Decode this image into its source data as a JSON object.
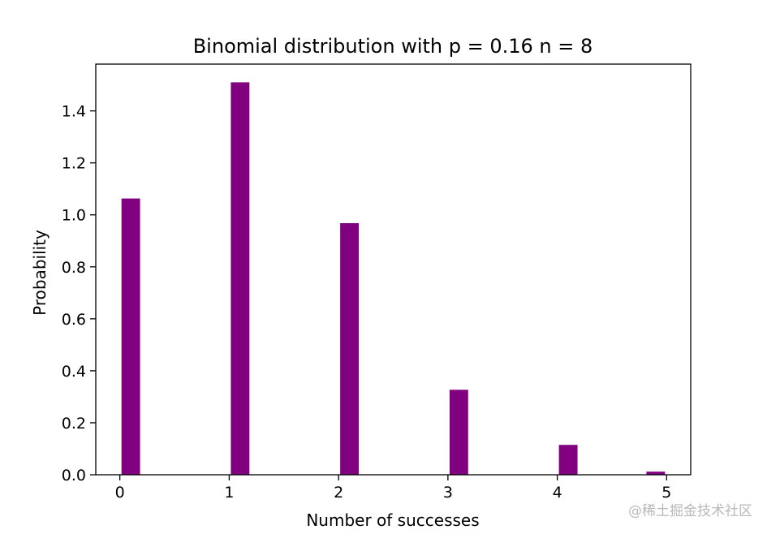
{
  "chart_data": {
    "type": "bar",
    "title": "Binomial distribution with p = 0.16 n = 8",
    "xlabel": "Number of successes",
    "ylabel": "Probability",
    "x": [
      0.1,
      1.1,
      2.1,
      3.1,
      4.1,
      4.9
    ],
    "values": [
      1.063,
      1.51,
      0.968,
      0.327,
      0.115,
      0.012
    ],
    "bar_width": 0.17,
    "xlim": [
      -0.22,
      5.22
    ],
    "ylim": [
      0,
      1.58
    ],
    "xticks": [
      0,
      1,
      2,
      3,
      4,
      5
    ],
    "xtick_labels": [
      "0",
      "1",
      "2",
      "3",
      "4",
      "5"
    ],
    "yticks": [
      0.0,
      0.2,
      0.4,
      0.6,
      0.8,
      1.0,
      1.2,
      1.4
    ],
    "ytick_labels": [
      "0.0",
      "0.2",
      "0.4",
      "0.6",
      "0.8",
      "1.0",
      "1.2",
      "1.4"
    ],
    "bar_color": "#800080",
    "grid": false,
    "legend": null
  },
  "watermark": "@稀土掘金技术社区"
}
